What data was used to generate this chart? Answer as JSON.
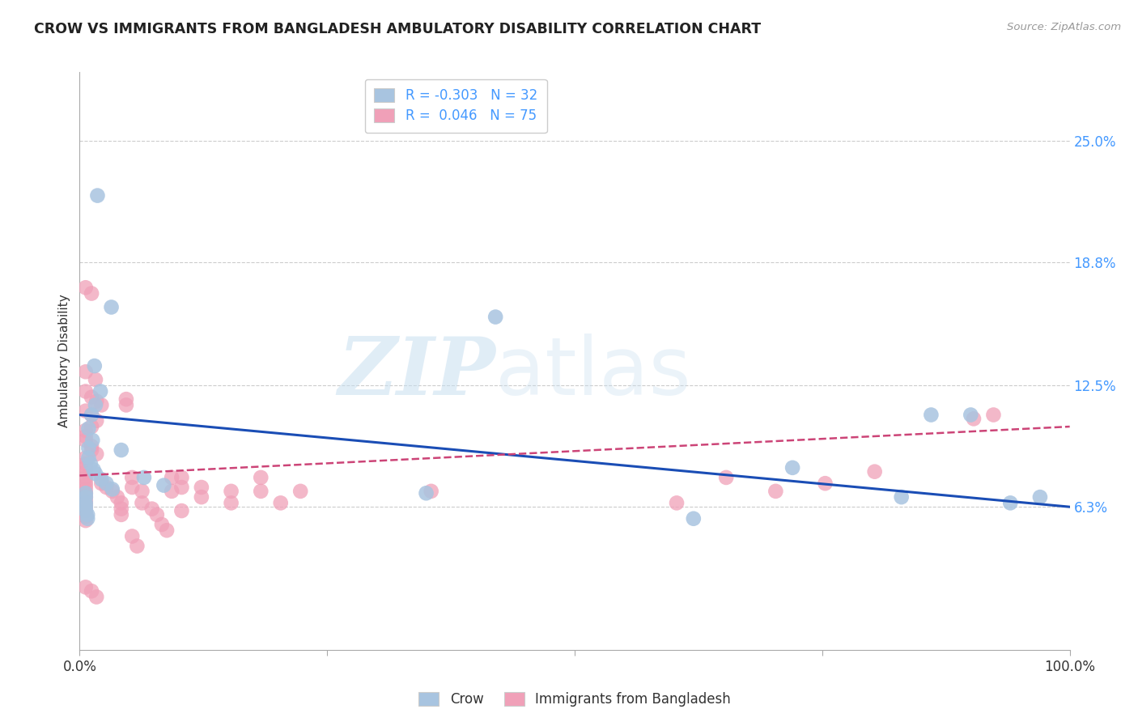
{
  "title": "CROW VS IMMIGRANTS FROM BANGLADESH AMBULATORY DISABILITY CORRELATION CHART",
  "source": "Source: ZipAtlas.com",
  "ylabel": "Ambulatory Disability",
  "ytick_labels": [
    "6.3%",
    "12.5%",
    "18.8%",
    "25.0%"
  ],
  "ytick_values": [
    0.063,
    0.125,
    0.188,
    0.25
  ],
  "xlim": [
    0.0,
    1.0
  ],
  "ylim": [
    -0.01,
    0.285
  ],
  "crow_color": "#a8c4e0",
  "bangladesh_color": "#f0a0b8",
  "crow_line_color": "#1a4db5",
  "bangladesh_line_color": "#cc4477",
  "crow_points": [
    [
      0.018,
      0.222
    ],
    [
      0.032,
      0.165
    ],
    [
      0.015,
      0.135
    ],
    [
      0.021,
      0.122
    ],
    [
      0.016,
      0.115
    ],
    [
      0.012,
      0.11
    ],
    [
      0.009,
      0.103
    ],
    [
      0.013,
      0.097
    ],
    [
      0.009,
      0.093
    ],
    [
      0.009,
      0.088
    ],
    [
      0.011,
      0.085
    ],
    [
      0.014,
      0.082
    ],
    [
      0.016,
      0.08
    ],
    [
      0.022,
      0.077
    ],
    [
      0.027,
      0.075
    ],
    [
      0.033,
      0.072
    ],
    [
      0.006,
      0.07
    ],
    [
      0.006,
      0.068
    ],
    [
      0.006,
      0.065
    ],
    [
      0.006,
      0.063
    ],
    [
      0.006,
      0.061
    ],
    [
      0.008,
      0.059
    ],
    [
      0.008,
      0.057
    ],
    [
      0.042,
      0.092
    ],
    [
      0.065,
      0.078
    ],
    [
      0.085,
      0.074
    ],
    [
      0.35,
      0.07
    ],
    [
      0.42,
      0.16
    ],
    [
      0.62,
      0.057
    ],
    [
      0.72,
      0.083
    ],
    [
      0.83,
      0.068
    ],
    [
      0.86,
      0.11
    ],
    [
      0.9,
      0.11
    ],
    [
      0.94,
      0.065
    ],
    [
      0.97,
      0.068
    ]
  ],
  "bangladesh_points": [
    [
      0.006,
      0.175
    ],
    [
      0.012,
      0.172
    ],
    [
      0.006,
      0.132
    ],
    [
      0.016,
      0.128
    ],
    [
      0.006,
      0.122
    ],
    [
      0.012,
      0.119
    ],
    [
      0.017,
      0.117
    ],
    [
      0.022,
      0.115
    ],
    [
      0.006,
      0.112
    ],
    [
      0.012,
      0.11
    ],
    [
      0.017,
      0.107
    ],
    [
      0.012,
      0.104
    ],
    [
      0.006,
      0.102
    ],
    [
      0.006,
      0.099
    ],
    [
      0.006,
      0.097
    ],
    [
      0.012,
      0.094
    ],
    [
      0.012,
      0.092
    ],
    [
      0.017,
      0.09
    ],
    [
      0.006,
      0.088
    ],
    [
      0.006,
      0.085
    ],
    [
      0.006,
      0.083
    ],
    [
      0.006,
      0.081
    ],
    [
      0.006,
      0.078
    ],
    [
      0.006,
      0.076
    ],
    [
      0.006,
      0.074
    ],
    [
      0.006,
      0.072
    ],
    [
      0.006,
      0.07
    ],
    [
      0.006,
      0.068
    ],
    [
      0.006,
      0.066
    ],
    [
      0.006,
      0.064
    ],
    [
      0.006,
      0.062
    ],
    [
      0.006,
      0.06
    ],
    [
      0.006,
      0.058
    ],
    [
      0.006,
      0.056
    ],
    [
      0.006,
      0.022
    ],
    [
      0.012,
      0.02
    ],
    [
      0.017,
      0.017
    ],
    [
      0.022,
      0.075
    ],
    [
      0.027,
      0.073
    ],
    [
      0.033,
      0.071
    ],
    [
      0.038,
      0.068
    ],
    [
      0.042,
      0.065
    ],
    [
      0.042,
      0.062
    ],
    [
      0.042,
      0.059
    ],
    [
      0.047,
      0.118
    ],
    [
      0.047,
      0.115
    ],
    [
      0.053,
      0.078
    ],
    [
      0.053,
      0.073
    ],
    [
      0.053,
      0.048
    ],
    [
      0.058,
      0.043
    ],
    [
      0.063,
      0.071
    ],
    [
      0.063,
      0.065
    ],
    [
      0.073,
      0.062
    ],
    [
      0.078,
      0.059
    ],
    [
      0.083,
      0.054
    ],
    [
      0.088,
      0.051
    ],
    [
      0.093,
      0.078
    ],
    [
      0.093,
      0.071
    ],
    [
      0.103,
      0.078
    ],
    [
      0.103,
      0.073
    ],
    [
      0.103,
      0.061
    ],
    [
      0.123,
      0.073
    ],
    [
      0.123,
      0.068
    ],
    [
      0.153,
      0.071
    ],
    [
      0.153,
      0.065
    ],
    [
      0.183,
      0.078
    ],
    [
      0.183,
      0.071
    ],
    [
      0.203,
      0.065
    ],
    [
      0.223,
      0.071
    ],
    [
      0.355,
      0.071
    ],
    [
      0.603,
      0.065
    ],
    [
      0.653,
      0.078
    ],
    [
      0.703,
      0.071
    ],
    [
      0.753,
      0.075
    ],
    [
      0.803,
      0.081
    ],
    [
      0.903,
      0.108
    ],
    [
      0.923,
      0.11
    ]
  ],
  "watermark_zip": "ZIP",
  "watermark_atlas": "atlas",
  "crow_trendline": [
    -0.047,
    0.11
  ],
  "bang_trendline": [
    0.025,
    0.079
  ]
}
